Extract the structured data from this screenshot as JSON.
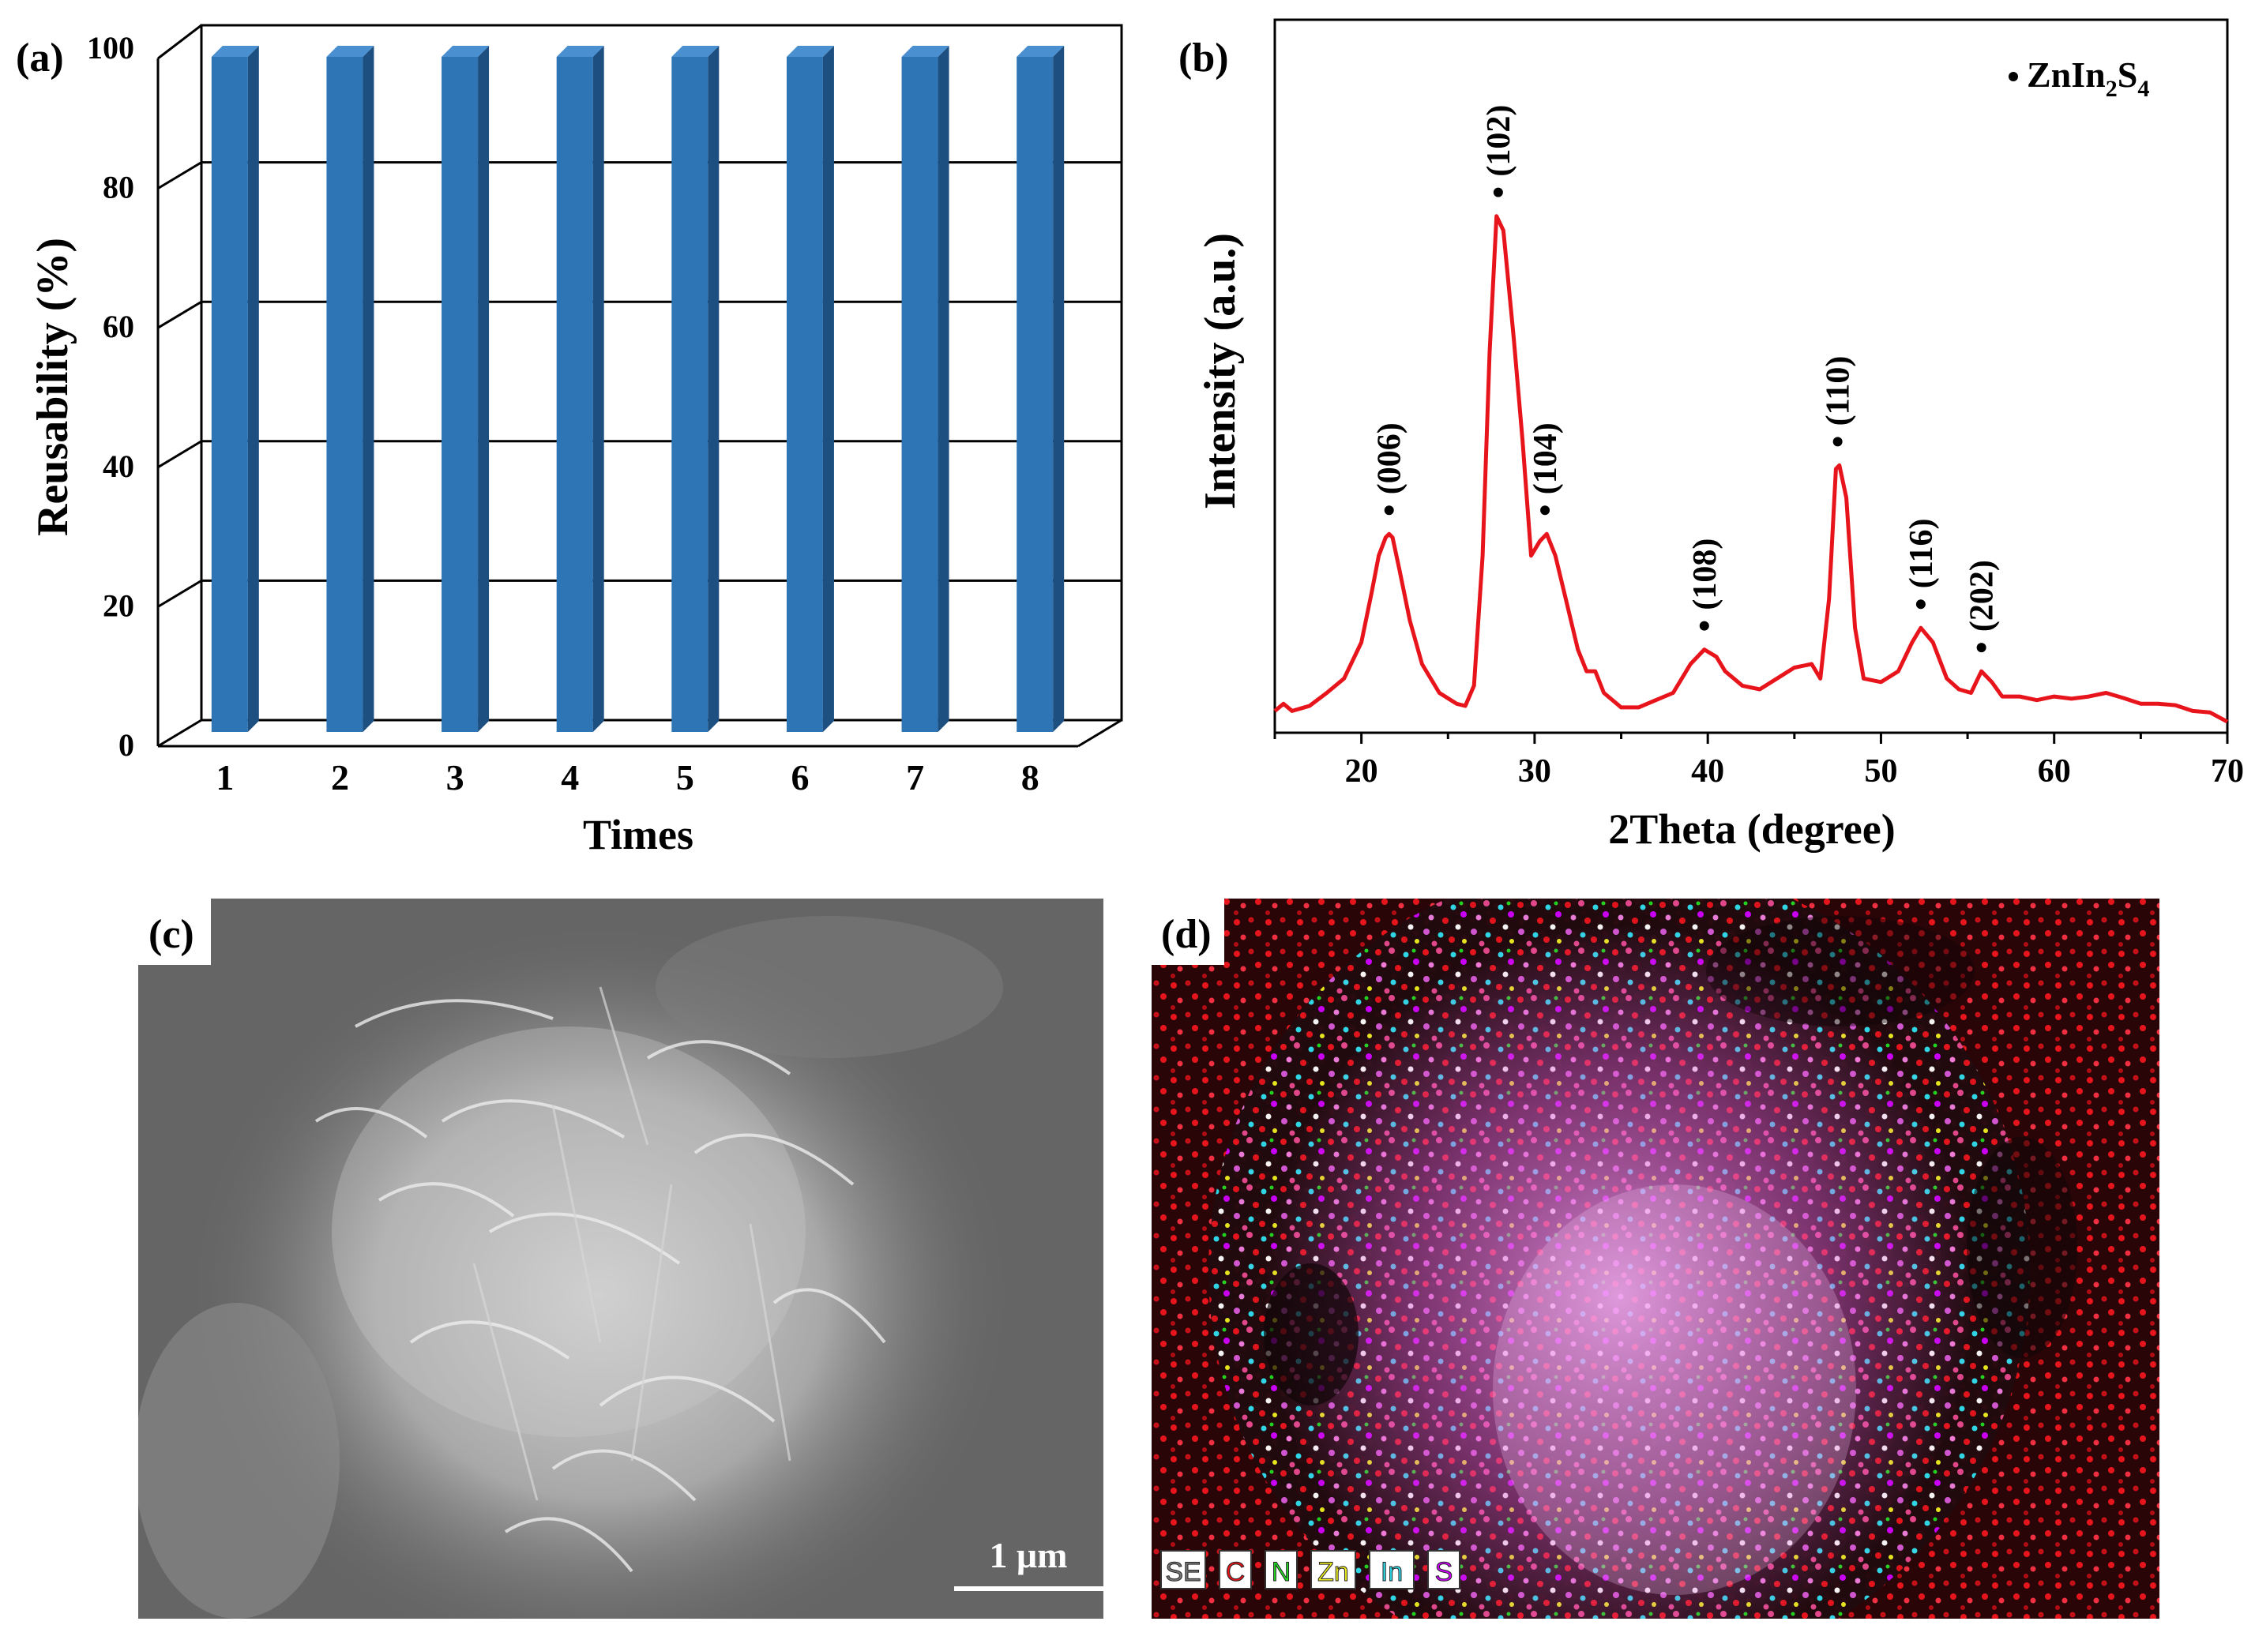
{
  "chart_data": [
    {
      "type": "bar",
      "panel_label": "(a)",
      "ylabel": "Reusability (%)",
      "xlabel": "Times",
      "categories": [
        "1",
        "2",
        "3",
        "4",
        "5",
        "6",
        "7",
        "8"
      ],
      "values": [
        100,
        100,
        100,
        100,
        100,
        100,
        100,
        100
      ],
      "ylim": [
        0,
        100
      ],
      "yticks": [
        "0",
        "20",
        "40",
        "60",
        "80",
        "100"
      ],
      "grid": true,
      "bar_color": "#2e75b6"
    },
    {
      "type": "line",
      "panel_label": "(b)",
      "ylabel": "Intensity (a.u.)",
      "xlabel": "2Theta (degree)",
      "xlim": [
        15,
        70
      ],
      "ylim": [
        0,
        100
      ],
      "xticks": [
        "20",
        "30",
        "40",
        "50",
        "60",
        "70"
      ],
      "legend": {
        "marker": "•",
        "name": "ZnIn",
        "sub1": "2",
        "mid": "S",
        "sub2": "4",
        "position": "top-right"
      },
      "line_color": "#e8141c",
      "x": [
        15,
        15.5,
        16,
        17,
        18,
        19,
        20,
        20.6,
        21,
        21.4,
        21.6,
        21.8,
        22.2,
        22.8,
        23.5,
        24.5,
        25.5,
        26,
        26.5,
        27,
        27.4,
        27.8,
        28.2,
        28.8,
        29.3,
        29.8,
        30.3,
        30.7,
        31.2,
        31.8,
        32.5,
        33,
        33.5,
        34,
        35,
        36,
        37,
        38,
        39,
        39.8,
        40.5,
        41,
        42,
        43,
        44,
        45,
        46,
        46.5,
        47,
        47.4,
        47.6,
        48,
        48.5,
        49,
        50,
        51,
        51.8,
        52.3,
        53,
        53.8,
        54.5,
        55.2,
        55.8,
        56.4,
        57,
        58,
        59,
        60,
        61,
        62,
        63,
        64,
        65,
        66,
        67,
        68,
        69,
        70
      ],
      "y": [
        0.5,
        1.5,
        0.5,
        1.2,
        3,
        5,
        10,
        17,
        22,
        24.5,
        25,
        24.5,
        20,
        13,
        7,
        3,
        1.5,
        1.2,
        4,
        22,
        50,
        69,
        67,
        52,
        38,
        22,
        24,
        25,
        22,
        16,
        9,
        6,
        6,
        3,
        1,
        1,
        2,
        3,
        7,
        9,
        8,
        6,
        4,
        3.5,
        5,
        6.5,
        7,
        5,
        16,
        34,
        34.5,
        30,
        12,
        5,
        4.5,
        6,
        10,
        12,
        10,
        5,
        3.5,
        3,
        6,
        4.5,
        2.5,
        2.5,
        2,
        2.5,
        2.2,
        2.5,
        3,
        2.3,
        1.5,
        1.5,
        1.3,
        0.5,
        0.3,
        -1
      ],
      "peaks": [
        {
          "label": "(006)",
          "x": 21.6,
          "y": 25
        },
        {
          "label": "(102)",
          "x": 27.9,
          "y": 69
        },
        {
          "label": "(104)",
          "x": 30.6,
          "y": 25
        },
        {
          "label": "(108)",
          "x": 39.8,
          "y": 9
        },
        {
          "label": "(110)",
          "x": 47.5,
          "y": 34.5
        },
        {
          "label": "(116)",
          "x": 52.3,
          "y": 12
        },
        {
          "label": "(202)",
          "x": 55.8,
          "y": 6
        }
      ]
    }
  ],
  "images": {
    "c": {
      "panel_label": "(c)",
      "scale_bar": "1 μm"
    },
    "d": {
      "panel_label": "(d)",
      "legend": [
        {
          "text": "SE",
          "color": "#ffffff"
        },
        {
          "text": "C",
          "color": "#e8141c"
        },
        {
          "text": "N",
          "color": "#22dd22"
        },
        {
          "text": "Zn",
          "color": "#f0f020"
        },
        {
          "text": "In",
          "color": "#30e0f0"
        },
        {
          "text": "S",
          "color": "#d000ff"
        }
      ]
    }
  }
}
